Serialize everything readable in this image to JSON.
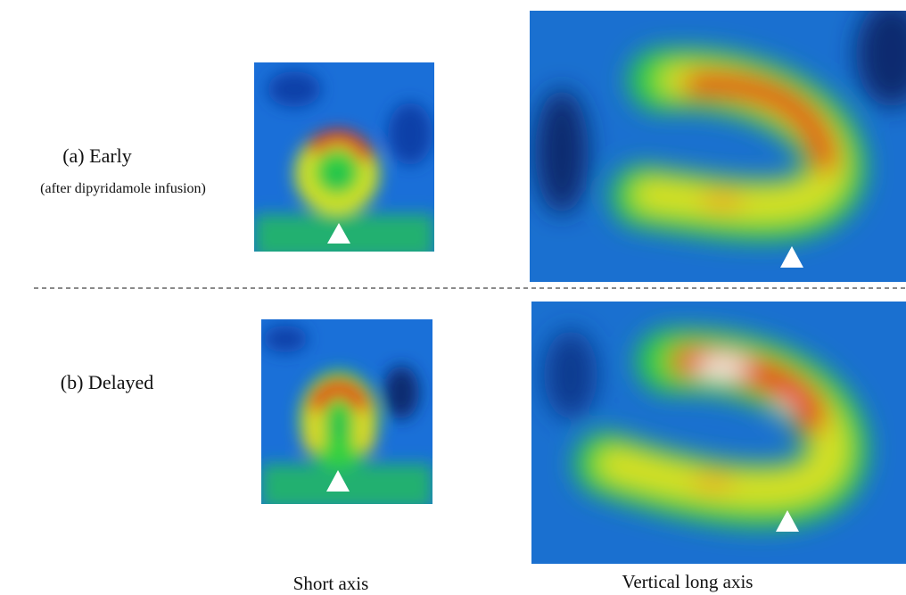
{
  "panels": [
    {
      "label": "(a) Early",
      "sublabel": "(after dipyridamole infusion)"
    },
    {
      "label": "(b) Delayed"
    }
  ],
  "columns": [
    "Short axis",
    "Vertical long axis"
  ]
}
